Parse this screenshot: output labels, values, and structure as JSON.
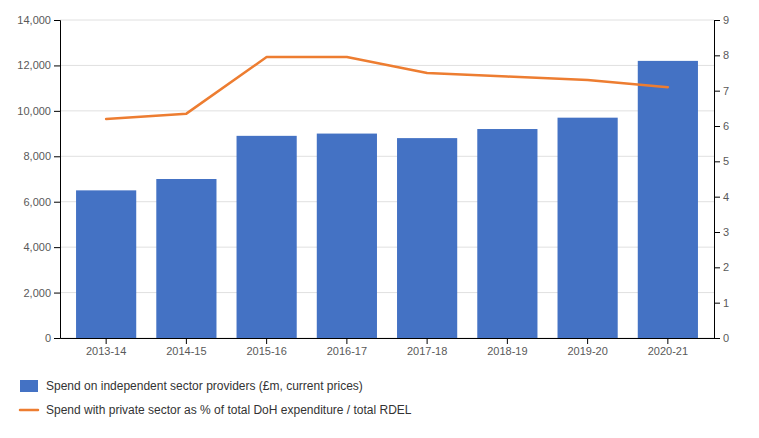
{
  "chart_data": {
    "type": "bar",
    "categories": [
      "2013-14",
      "2014-15",
      "2015-16",
      "2016-17",
      "2017-18",
      "2018-19",
      "2019-20",
      "2020-21"
    ],
    "series": [
      {
        "name": "Spend on independent sector providers (£m, current prices)",
        "type": "bar",
        "color": "#4472C4",
        "values": [
          6500,
          7000,
          8900,
          9000,
          8800,
          9200,
          9700,
          12200
        ]
      },
      {
        "name": "Spend with private sector as % of total DoH expenditure / total RDEL",
        "type": "line",
        "axis": "y2",
        "color": "#ED7D31",
        "values": [
          6.2,
          6.35,
          7.95,
          7.95,
          7.5,
          7.4,
          7.3,
          7.1
        ]
      }
    ],
    "ylim": [
      0,
      14000
    ],
    "yticks": [
      0,
      {
        "value": 2000,
        "label": "2,000"
      },
      {
        "value": 4000,
        "label": "4,000"
      },
      {
        "value": 6000,
        "label": "6,000"
      },
      {
        "value": 8000,
        "label": "8,000"
      },
      {
        "value": 10000,
        "label": "10,000"
      },
      {
        "value": 12000,
        "label": "12,000"
      },
      {
        "value": 14000,
        "label": "14,000"
      }
    ],
    "y2lim": [
      0,
      9
    ],
    "y2ticks": [
      0,
      1,
      2,
      3,
      4,
      5,
      6,
      7,
      8,
      9
    ],
    "grid": true,
    "legend": "bottom"
  }
}
